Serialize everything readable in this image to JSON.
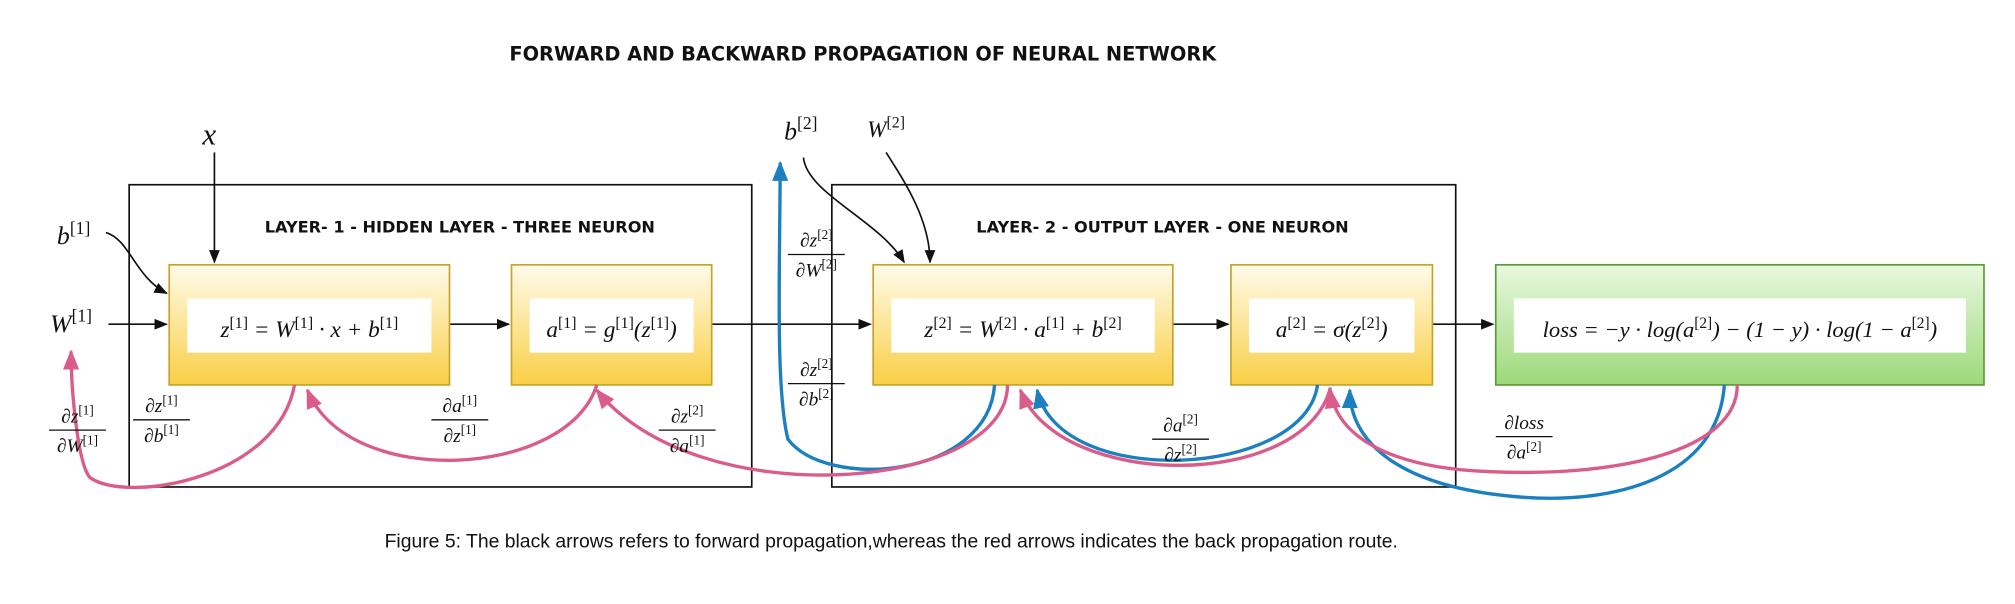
{
  "title": "FORWARD AND BACKWARD PROPAGATION OF NEURAL NETWORK",
  "layers": [
    {
      "label": "LAYER- 1 - HIDDEN LAYER - THREE NEURON"
    },
    {
      "label": "LAYER- 2 - OUTPUT LAYER - ONE NEURON"
    }
  ],
  "nodes": [
    {
      "formula": [
        "z",
        "[1]",
        " = W",
        "[1]",
        " · x + b",
        "[1]"
      ]
    },
    {
      "formula": [
        "a",
        "[1]",
        " = g",
        "[1]",
        "(z",
        "[1]",
        ")"
      ]
    },
    {
      "formula": [
        "z",
        "[2]",
        " = W",
        "[2]",
        " · a",
        "[1]",
        " + b",
        "[2]"
      ]
    },
    {
      "formula": [
        "a",
        "[2]",
        " = σ(z",
        "[2]",
        ")"
      ]
    },
    {
      "formula": [
        "loss = −y · log(a",
        "[2]",
        ") − (1 − y) · log(1 − a",
        "[2]",
        ")"
      ]
    }
  ],
  "inputs": [
    [
      "x"
    ],
    [
      "b",
      "[1]"
    ],
    [
      "W",
      "[1]"
    ],
    [
      "b",
      "[2]"
    ],
    [
      "W",
      "[2]"
    ]
  ],
  "gradients": [
    {
      "num": [
        "∂z",
        "[1]"
      ],
      "den": [
        "∂W",
        "[1]"
      ]
    },
    {
      "num": [
        "∂z",
        "[1]"
      ],
      "den": [
        "∂b",
        "[1]"
      ]
    },
    {
      "num": [
        "∂a",
        "[1]"
      ],
      "den": [
        "∂z",
        "[1]"
      ]
    },
    {
      "num": [
        "∂z",
        "[2]"
      ],
      "den": [
        "∂a",
        "[1]"
      ]
    },
    {
      "num": [
        "∂z",
        "[2]"
      ],
      "den": [
        "∂W",
        "[2]"
      ]
    },
    {
      "num": [
        "∂z",
        "[2]"
      ],
      "den": [
        "∂b",
        "[2]"
      ]
    },
    {
      "num": [
        "∂a",
        "[2]"
      ],
      "den": [
        "∂z",
        "[2]"
      ]
    },
    {
      "num": [
        "∂loss",
        ""
      ],
      "den": [
        "∂a",
        "[2]"
      ]
    }
  ],
  "caption": "Figure 5: The black arrows refers to forward propagation,whereas the red arrows indicates the back propagation route."
}
